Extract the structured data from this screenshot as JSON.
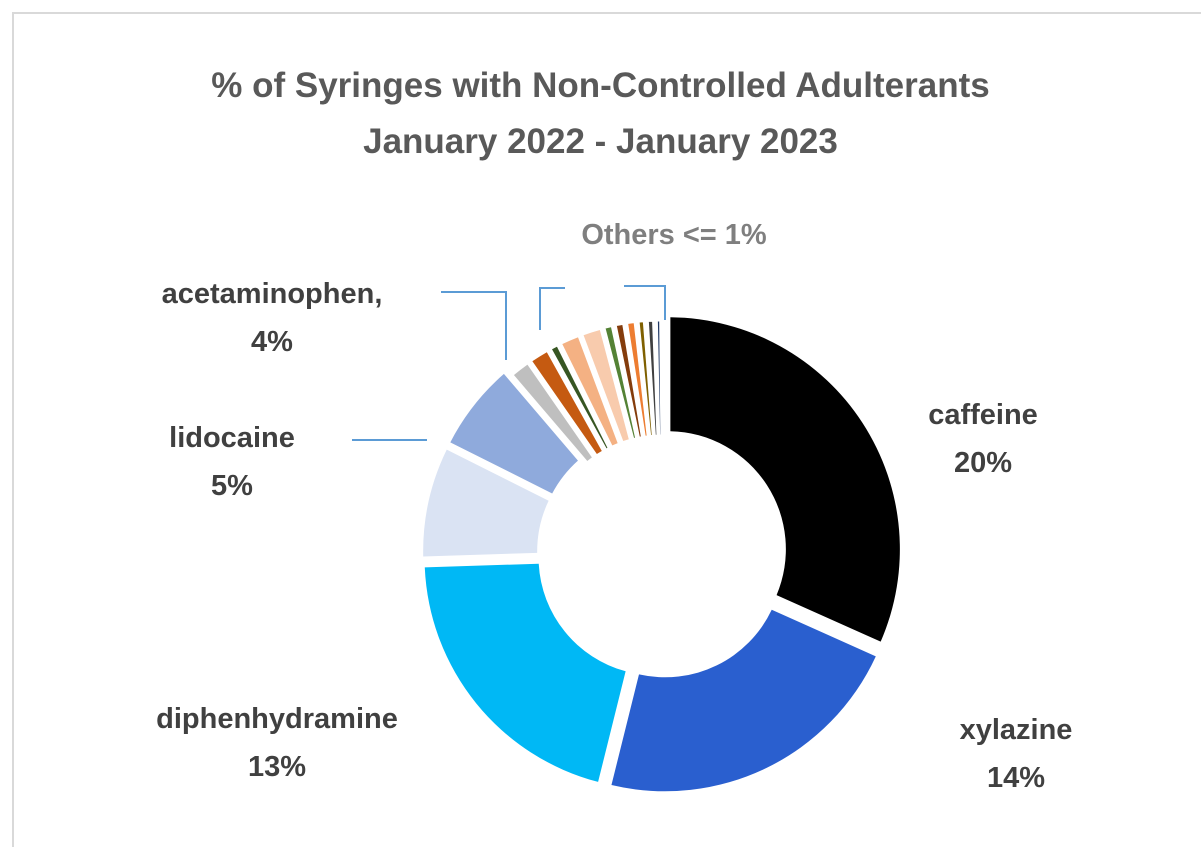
{
  "chart_data": {
    "type": "pie",
    "variant": "donut",
    "title": "% of Syringes with Non-Controlled Adulterants",
    "subtitle": "January 2022 - January 2023",
    "slices": [
      {
        "label": "caffeine",
        "value": 20,
        "display_value": "20%",
        "color": "#000000"
      },
      {
        "label": "xylazine",
        "value": 14,
        "display_value": "14%",
        "color": "#2a5fcf"
      },
      {
        "label": "diphenhydramine",
        "value": 13,
        "display_value": "13%",
        "color": "#00b8f5"
      },
      {
        "label": "lidocaine",
        "value": 5,
        "display_value": "5%",
        "color": "#dae3f3"
      },
      {
        "label": "acetaminophen",
        "value": 4,
        "display_value": "4%",
        "color": "#8faadc"
      },
      {
        "value": 1,
        "color": "#bfbfbf"
      },
      {
        "value": 1,
        "color": "#c55a11"
      },
      {
        "value": 0.5,
        "color": "#375623"
      },
      {
        "value": 1,
        "color": "#f4b183"
      },
      {
        "value": 1,
        "color": "#f8cbad"
      },
      {
        "value": 0.5,
        "color": "#548235"
      },
      {
        "value": 0.5,
        "color": "#843c0c"
      },
      {
        "value": 0.5,
        "color": "#ed7d31"
      },
      {
        "value": 0.4,
        "color": "#7f6000"
      },
      {
        "value": 0.4,
        "color": "#404040"
      },
      {
        "value": 0.3,
        "color": "#203864"
      }
    ],
    "group_label": "Others <= 1%",
    "legend": "none"
  }
}
